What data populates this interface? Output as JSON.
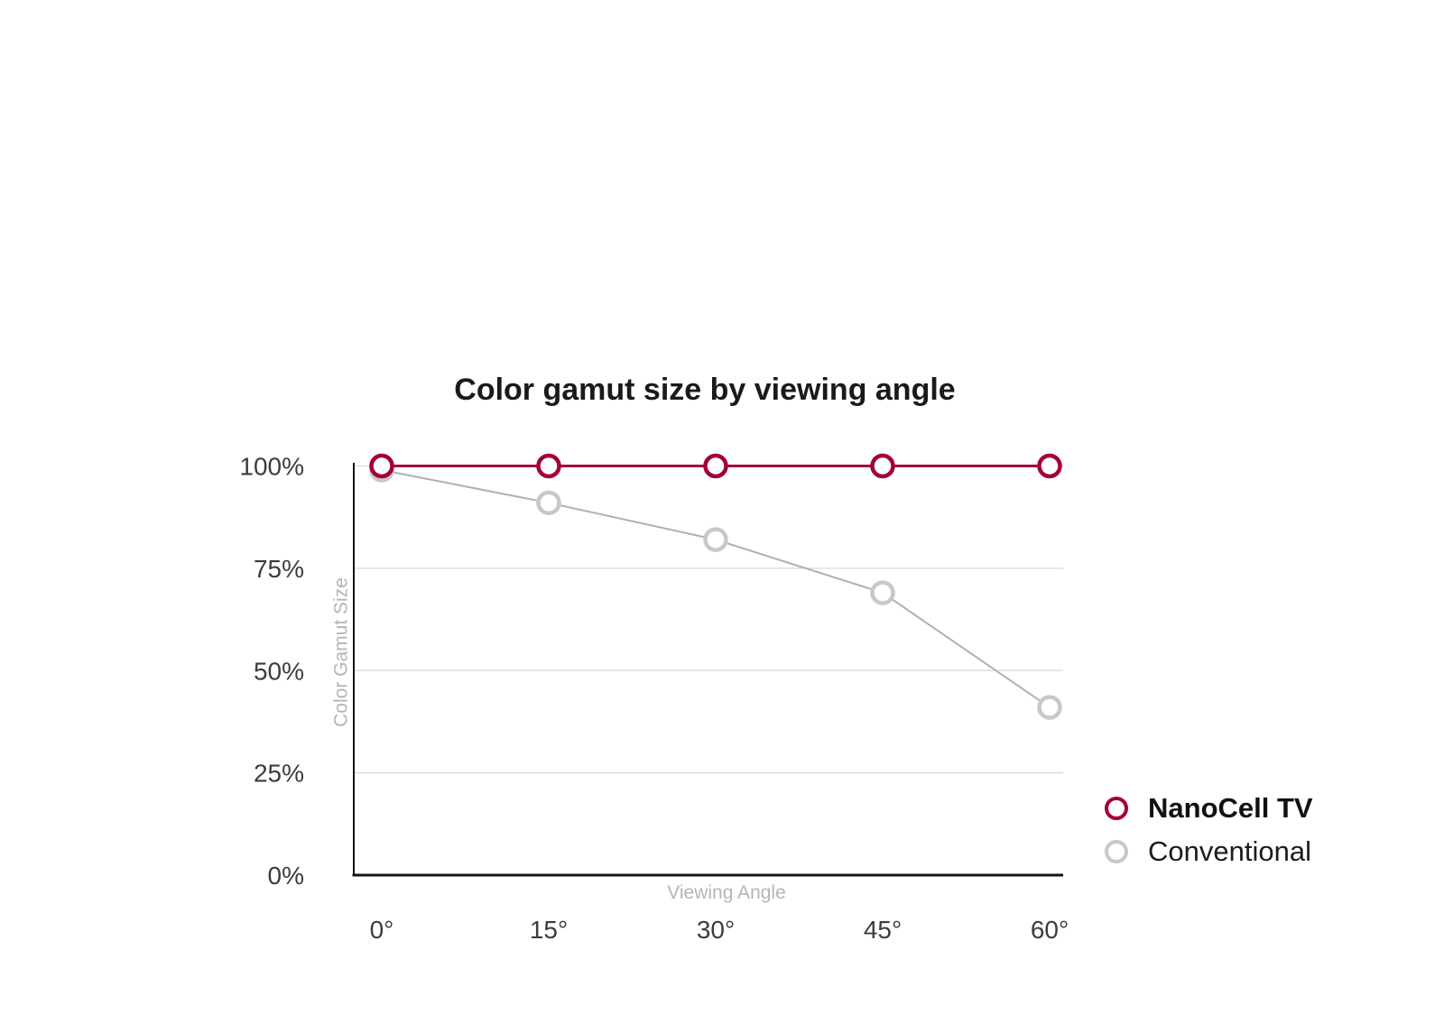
{
  "chart_data": {
    "type": "line",
    "title": "Color gamut size by viewing angle",
    "xlabel": "Viewing Angle",
    "ylabel": "Color Gamut Size",
    "categories": [
      "0°",
      "15°",
      "30°",
      "45°",
      "60°"
    ],
    "series": [
      {
        "name": "NanoCell TV",
        "values": [
          100,
          100,
          100,
          100,
          100
        ],
        "color": "#a50034",
        "marker_stroke": "#a50034",
        "line_width": 3,
        "emphasis": true
      },
      {
        "name": "Conventional",
        "values": [
          99,
          91,
          82,
          69,
          41
        ],
        "color": "#b0b0b0",
        "marker_stroke": "#c8c8c8",
        "line_width": 2,
        "emphasis": false
      }
    ],
    "ylim": [
      0,
      100
    ],
    "yticks": [
      0,
      25,
      50,
      75,
      100
    ],
    "ytick_labels": [
      "0%",
      "25%",
      "50%",
      "75%",
      "100%"
    ],
    "grid": true,
    "legend_position": "right-bottom"
  },
  "colors": {
    "brand_red": "#a50034",
    "conventional_gray": "#c8c8c8",
    "gridline": "#d8d8d8",
    "axis": "#141414",
    "tick_text": "#3c3c3c",
    "axis_title_text": "#b5b5b5",
    "background": "#ffffff"
  }
}
